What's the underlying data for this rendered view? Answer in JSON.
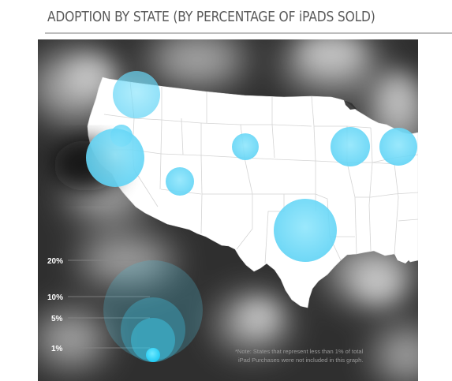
{
  "title": "ADOPTION BY STATE (BY PERCENTAGE OF iPADS SOLD)",
  "legend": {
    "items": [
      {
        "label": "20%",
        "value": 20
      },
      {
        "label": "10%",
        "value": 10
      },
      {
        "label": "5%",
        "value": 5
      },
      {
        "label": "1%",
        "value": 1
      }
    ]
  },
  "note": {
    "line1": "*Note: States that represent less than 1% of total",
    "line2": "iPad Purchases were not included in this graph."
  },
  "colors": {
    "background": "#2f2f2f",
    "land": "#ffffff",
    "bubble": "#55d6f8",
    "legend_text": "#ffffff",
    "title_text": "#5a5a5a"
  },
  "markers": [
    {
      "region": "Washington / Oregon",
      "value": 4
    },
    {
      "region": "Northern California",
      "value": 2
    },
    {
      "region": "Southern California",
      "value": 8
    },
    {
      "region": "Arizona",
      "value": 3
    },
    {
      "region": "Colorado",
      "value": 1
    },
    {
      "region": "Minnesota / Wisconsin",
      "value": 3
    },
    {
      "region": "Michigan / Great Lakes",
      "value": 2
    },
    {
      "region": "Texas",
      "value": 12
    }
  ]
}
